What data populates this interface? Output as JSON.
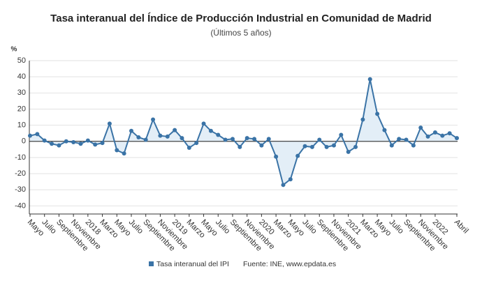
{
  "chart_data": {
    "type": "line",
    "title": "Tasa interanual del Índice de Producción Industrial en Comunidad de Madrid",
    "subtitle": "(Últimos 5 años)",
    "y_label": "%",
    "source": "Fuente: INE, www.epdata.es",
    "categories": [
      "Mayo",
      null,
      "Julio",
      null,
      "Septiembre",
      null,
      "Noviembre",
      null,
      "2018",
      null,
      "Marzo",
      null,
      "Mayo",
      null,
      "Julio",
      null,
      "Septiembre",
      null,
      "Noviembre",
      null,
      "2019",
      null,
      "Marzo",
      null,
      "Mayo",
      null,
      "Julio",
      null,
      "Septiembre",
      null,
      "Noviembre",
      null,
      "2020",
      null,
      "Marzo",
      null,
      "Mayo",
      null,
      "Julio",
      null,
      "Septiembre",
      null,
      "Noviembre",
      null,
      "2021",
      null,
      "Marzo",
      null,
      "Mayo",
      null,
      "Julio",
      null,
      "Septiembre",
      null,
      "Noviembre",
      null,
      "2022",
      null,
      null,
      "Abril"
    ],
    "series": [
      {
        "name": "Tasa interanual del IPI",
        "color": "#3a73a6",
        "values": [
          3.5,
          4.5,
          0.5,
          -1.5,
          -2.5,
          0,
          -0.5,
          -1.5,
          0.5,
          -2,
          -1,
          11,
          -5.5,
          -7.5,
          6.5,
          2.5,
          1,
          13.5,
          3.5,
          3,
          7,
          2,
          -4,
          -1,
          11,
          6.5,
          4,
          1,
          1.5,
          -3.5,
          2,
          1.5,
          -2.5,
          1.5,
          -9.5,
          -27,
          -23.5,
          -9,
          -3,
          -3.5,
          1,
          -3.5,
          -2.5,
          4,
          -6.5,
          -3.5,
          13.5,
          38.5,
          17,
          7,
          -2.5,
          1.5,
          1,
          -2.5,
          8.5,
          3,
          5.5,
          3.5,
          5,
          2
        ]
      }
    ],
    "ylim": [
      -45,
      50
    ],
    "yticks": [
      -40,
      -30,
      -20,
      -10,
      0,
      10,
      20,
      30,
      40,
      50
    ],
    "grid": true,
    "area_color": "#e3eef7"
  }
}
